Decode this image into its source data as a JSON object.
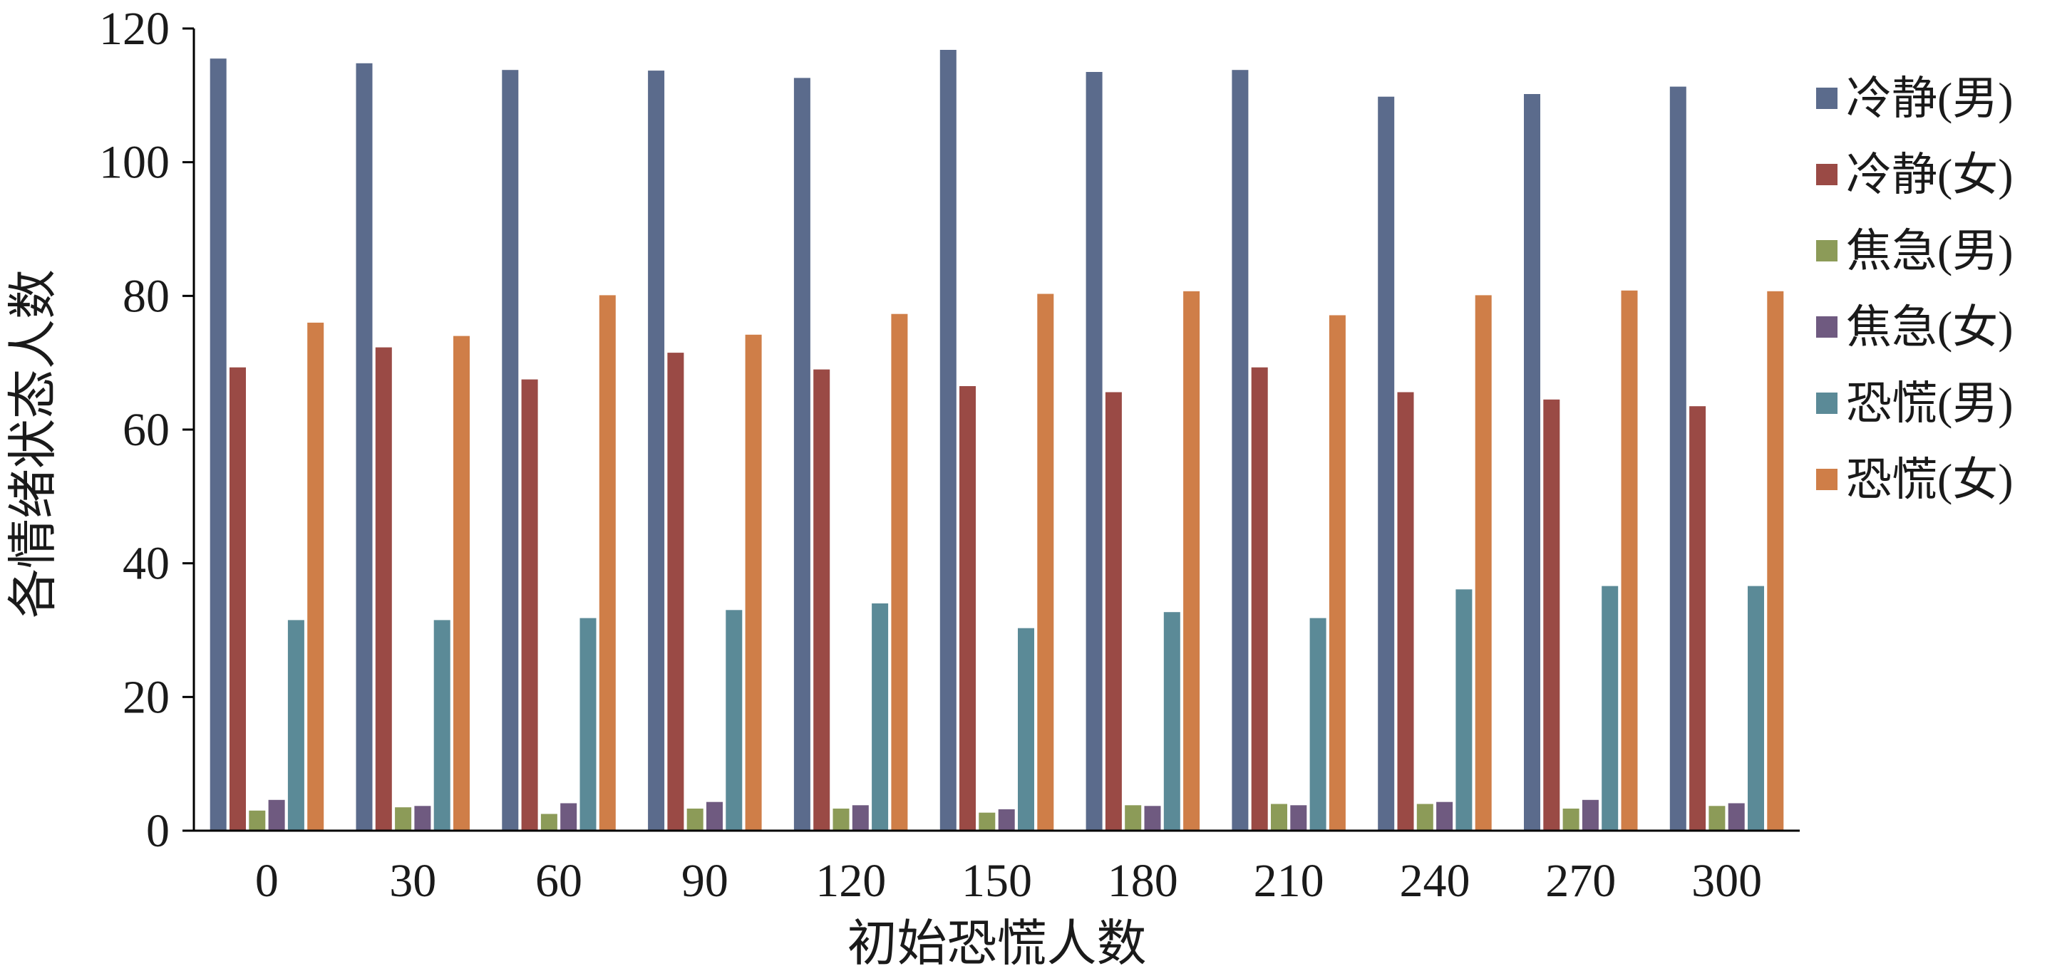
{
  "chart_data": {
    "type": "bar",
    "xlabel": "初始恐慌人数",
    "ylabel": "各情绪状态人数",
    "ylim": [
      0,
      120
    ],
    "yticks": [
      0,
      20,
      40,
      60,
      80,
      100,
      120
    ],
    "grid": false,
    "legend_position": "right",
    "categories": [
      "0",
      "30",
      "60",
      "90",
      "120",
      "150",
      "180",
      "210",
      "240",
      "270",
      "300"
    ],
    "series": [
      {
        "name": "冷静(男)",
        "color": "#5b6b8c",
        "values": [
          115.5,
          114.8,
          113.8,
          113.7,
          112.6,
          116.8,
          113.5,
          113.8,
          109.8,
          110.2,
          111.3
        ]
      },
      {
        "name": "冷静(女)",
        "color": "#9a4a45",
        "values": [
          69.3,
          72.3,
          67.5,
          71.5,
          69.0,
          66.5,
          65.6,
          69.3,
          65.6,
          64.5,
          63.5
        ]
      },
      {
        "name": "焦急(男)",
        "color": "#8c9b58",
        "values": [
          3.0,
          3.5,
          2.5,
          3.3,
          3.3,
          2.7,
          3.8,
          4.0,
          4.0,
          3.3,
          3.7
        ]
      },
      {
        "name": "焦急(女)",
        "color": "#6f5a80",
        "values": [
          4.6,
          3.7,
          4.1,
          4.3,
          3.8,
          3.2,
          3.7,
          3.8,
          4.3,
          4.6,
          4.1
        ]
      },
      {
        "name": "恐慌(男)",
        "color": "#5b8a97",
        "values": [
          31.5,
          31.5,
          31.8,
          33.0,
          34.0,
          30.3,
          32.7,
          31.8,
          36.1,
          36.6,
          36.6
        ]
      },
      {
        "name": "恐慌(女)",
        "color": "#cf7e48",
        "values": [
          76.0,
          74.0,
          80.1,
          74.2,
          77.3,
          80.3,
          80.7,
          77.1,
          80.1,
          80.8,
          80.7
        ]
      }
    ]
  }
}
